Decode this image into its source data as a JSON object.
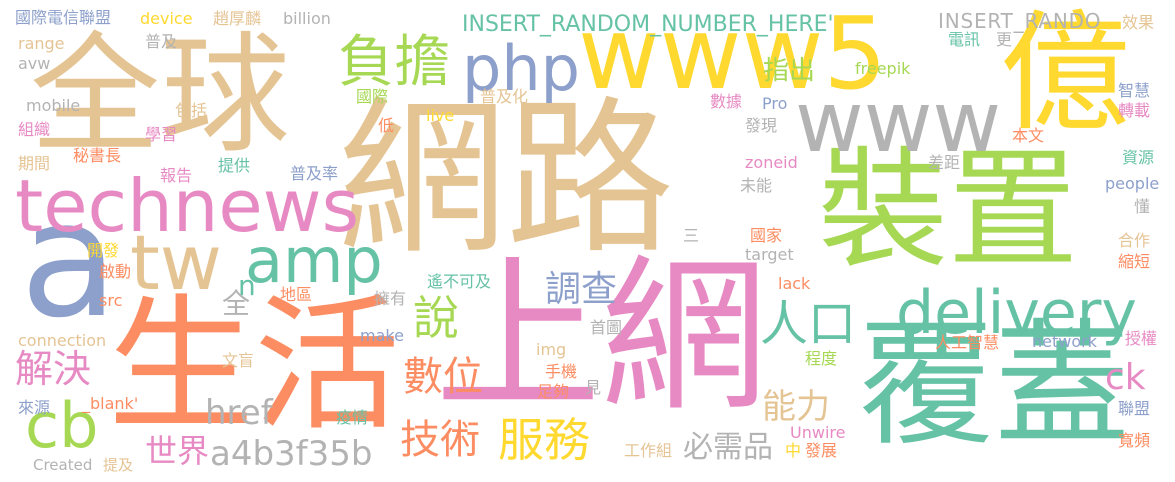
{
  "colors": {
    "tan": "#E5C494",
    "yellow": "#FFD92F",
    "green": "#A6D854",
    "teal": "#66C2A5",
    "orange": "#FC8D62",
    "pink": "#E78AC3",
    "blue": "#8DA0CB",
    "gray": "#B3B3B3"
  },
  "words": [
    "網路",
    "全球",
    "上網",
    "生活",
    "裝置",
    "覆蓋",
    "www5",
    "億",
    "a",
    "www",
    "technews",
    "php",
    "負擔",
    "tw",
    "amp",
    "delivery",
    "人口",
    "cb",
    "說",
    "數位",
    "服務",
    "技術",
    "解決",
    "調查",
    "a4b3f35b",
    "世界",
    "href",
    "能力",
    "必需品",
    "ck",
    "INSERT_RANDOM_NUMBER_HERE'",
    "INSERT_RANDO",
    "指出",
    "n",
    "國際電信聯盟",
    "device",
    "趙厚麟",
    "billion",
    "電訊",
    "更",
    "效果",
    "range",
    "普及",
    "avw",
    "mobile",
    "包括",
    "live",
    "普及化",
    "freepik",
    "組織",
    "學習",
    "國際",
    "智慧",
    "轉載",
    "數據",
    "Pro",
    "期間",
    "秘書長",
    "低",
    "發現",
    "本文",
    "提供",
    "報告",
    "普及率",
    "zoneid",
    "差距",
    "資源",
    "people",
    "未能",
    "懂",
    "開發",
    "三",
    "國家",
    "合作",
    "啟動",
    "全",
    "target",
    "縮短",
    "src",
    "地區",
    "遙不可及",
    "擁有",
    "lack",
    "connection",
    "make",
    "首圖",
    "授權",
    "文盲",
    "img",
    "程度",
    "人工智慧",
    "network",
    "手機",
    "來源",
    "_blank'",
    "疫情",
    "足夠",
    "見",
    "Unwire",
    "聯盟",
    "工作組",
    "中",
    "發展",
    "寬頻",
    "Created",
    "提及"
  ]
}
